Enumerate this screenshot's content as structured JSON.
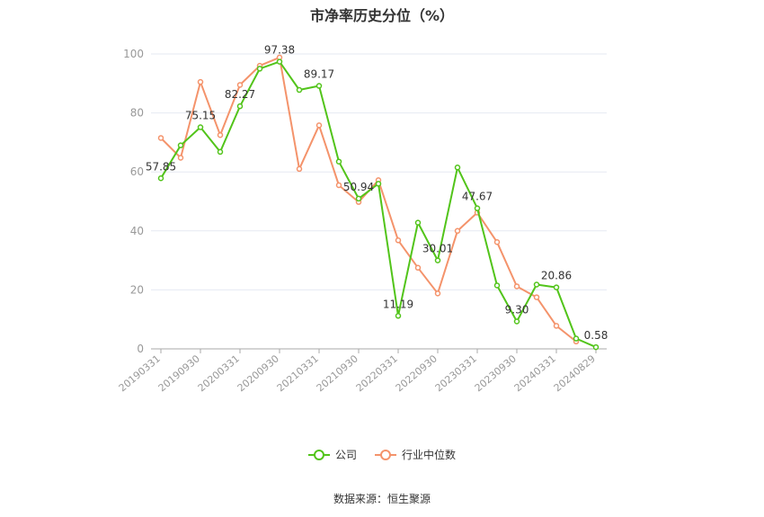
{
  "chart_data": {
    "type": "line",
    "title": "市净率历史分位（%）",
    "source": "数据来源：恒生聚源",
    "ylim": [
      0,
      100
    ],
    "yticks": [
      0,
      20,
      40,
      60,
      80,
      100
    ],
    "grid": true,
    "legend_position": "bottom",
    "x": [
      "20190331",
      "20190630",
      "20190930",
      "20191231",
      "20200331",
      "20200630",
      "20200930",
      "20201231",
      "20210331",
      "20210630",
      "20210930",
      "20211231",
      "20220331",
      "20220630",
      "20220930",
      "20221231",
      "20230331",
      "20230630",
      "20230930",
      "20231231",
      "20240331",
      "20240630",
      "20240829"
    ],
    "xtick_labels": [
      "20190331",
      "20190930",
      "20200331",
      "20200930",
      "20210331",
      "20210930",
      "20220331",
      "20220930",
      "20230331",
      "20230930",
      "20240331",
      "20240829"
    ],
    "series": [
      {
        "name": "公司",
        "color": "#52c41a",
        "values": [
          57.85,
          69.0,
          75.15,
          66.8,
          82.27,
          95.0,
          97.38,
          87.8,
          89.17,
          63.5,
          50.94,
          56.0,
          11.19,
          42.8,
          30.01,
          61.5,
          47.67,
          21.5,
          9.3,
          21.8,
          20.86,
          3.5,
          0.58
        ]
      },
      {
        "name": "行业中位数",
        "color": "#f4936b",
        "values": [
          71.5,
          64.8,
          90.5,
          72.5,
          89.5,
          96.0,
          98.8,
          61.0,
          75.8,
          55.5,
          49.8,
          57.2,
          36.8,
          27.5,
          18.8,
          40.0,
          46.2,
          36.2,
          21.2,
          17.5,
          7.8,
          2.5,
          null
        ]
      }
    ],
    "annotations": [
      {
        "index": 0,
        "text": "57.85"
      },
      {
        "index": 2,
        "text": "75.15"
      },
      {
        "index": 4,
        "text": "82.27"
      },
      {
        "index": 6,
        "text": "97.38"
      },
      {
        "index": 8,
        "text": "89.17"
      },
      {
        "index": 10,
        "text": "50.94"
      },
      {
        "index": 12,
        "text": "11.19"
      },
      {
        "index": 14,
        "text": "30.01"
      },
      {
        "index": 16,
        "text": "47.67"
      },
      {
        "index": 18,
        "text": "9.30"
      },
      {
        "index": 20,
        "text": "20.86"
      },
      {
        "index": 22,
        "text": "0.58"
      }
    ]
  }
}
